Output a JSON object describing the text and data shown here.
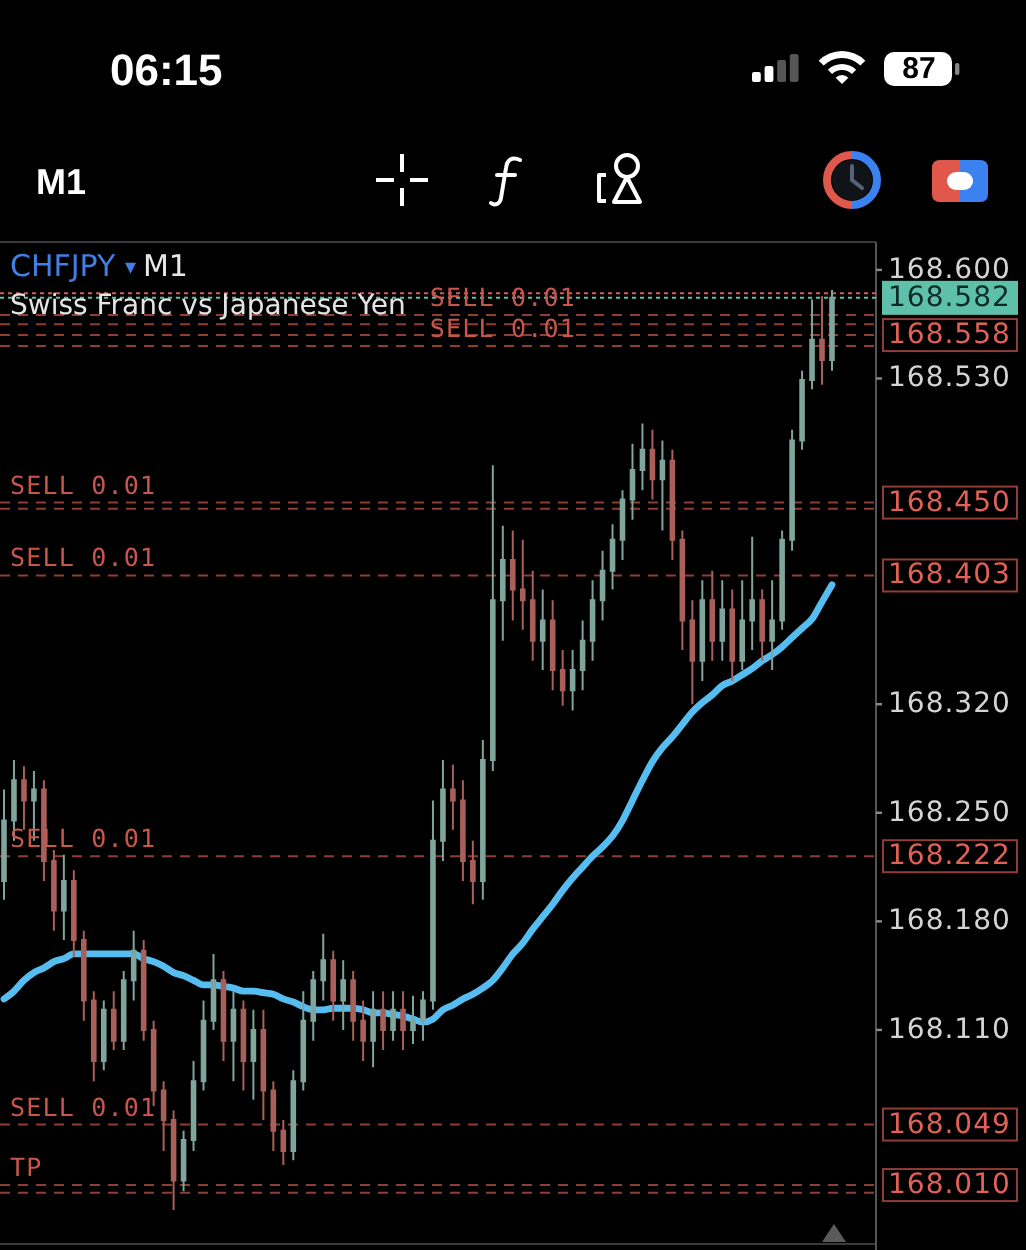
{
  "chart_data": {
    "type": "candlestick",
    "title": "CHFJPY ▾ M1",
    "subtitle": "Swiss Franc vs Japanese Yen",
    "categories": [
      null,
      null,
      null,
      null,
      null,
      null,
      null,
      null,
      null,
      null,
      null,
      null,
      null,
      null,
      null,
      null,
      null,
      null,
      null,
      null,
      null,
      null,
      null,
      null,
      null,
      null,
      null,
      null,
      null,
      null,
      null,
      null,
      null,
      null,
      null,
      null,
      null,
      null,
      null,
      null,
      null,
      null,
      null,
      null,
      null,
      null,
      null,
      null,
      null,
      null,
      null,
      null,
      null,
      null,
      null,
      null,
      null,
      null,
      null,
      null,
      null,
      null,
      null,
      null,
      null,
      null,
      null,
      null,
      null,
      null,
      null,
      null,
      null,
      null,
      null,
      null,
      null,
      null,
      null,
      null,
      null,
      null,
      null,
      null
    ],
    "ohlc": [
      [
        168.206,
        168.265,
        168.194,
        168.245
      ],
      [
        168.245,
        168.284,
        168.232,
        168.271
      ],
      [
        168.271,
        168.28,
        168.239,
        168.258
      ],
      [
        168.258,
        168.277,
        168.232,
        168.265
      ],
      [
        168.265,
        168.271,
        168.206,
        168.219
      ],
      [
        168.219,
        168.226,
        168.174,
        168.187
      ],
      [
        168.187,
        168.223,
        168.168,
        168.206
      ],
      [
        168.206,
        168.213,
        168.157,
        168.168
      ],
      [
        168.168,
        168.174,
        168.116,
        168.129
      ],
      [
        168.129,
        168.135,
        168.077,
        168.09
      ],
      [
        168.09,
        168.129,
        168.084,
        168.123
      ],
      [
        168.123,
        168.135,
        168.097,
        168.103
      ],
      [
        168.103,
        168.148,
        168.097,
        168.142
      ],
      [
        168.142,
        168.174,
        168.129,
        168.161
      ],
      [
        168.161,
        168.168,
        168.103,
        168.11
      ],
      [
        168.11,
        168.116,
        168.061,
        168.071
      ],
      [
        168.071,
        168.077,
        168.032,
        168.052
      ],
      [
        168.052,
        168.058,
        167.994,
        168.013
      ],
      [
        168.013,
        168.045,
        168.006,
        168.039
      ],
      [
        168.039,
        168.09,
        168.032,
        168.077
      ],
      [
        168.077,
        168.129,
        168.071,
        168.116
      ],
      [
        168.116,
        168.159,
        168.11,
        168.142
      ],
      [
        168.142,
        168.148,
        168.09,
        168.103
      ],
      [
        168.103,
        168.135,
        168.077,
        168.123
      ],
      [
        168.123,
        168.129,
        168.071,
        168.09
      ],
      [
        168.09,
        168.123,
        168.065,
        168.11
      ],
      [
        168.11,
        168.123,
        168.052,
        168.071
      ],
      [
        168.071,
        168.077,
        168.032,
        168.045
      ],
      [
        168.045,
        168.052,
        168.023,
        168.032
      ],
      [
        168.032,
        168.084,
        168.026,
        168.077
      ],
      [
        168.077,
        168.135,
        168.071,
        168.116
      ],
      [
        168.116,
        168.148,
        168.103,
        168.142
      ],
      [
        168.142,
        168.172,
        168.129,
        168.155
      ],
      [
        168.155,
        168.161,
        168.116,
        168.129
      ],
      [
        168.129,
        168.155,
        168.11,
        168.142
      ],
      [
        168.142,
        168.148,
        168.103,
        168.116
      ],
      [
        168.116,
        168.129,
        168.09,
        168.103
      ],
      [
        168.103,
        168.135,
        168.086,
        168.123
      ],
      [
        168.123,
        168.135,
        168.097,
        168.11
      ],
      [
        168.11,
        168.135,
        168.103,
        168.123
      ],
      [
        168.123,
        168.135,
        168.097,
        168.11
      ],
      [
        168.11,
        168.132,
        168.101,
        168.116
      ],
      [
        168.116,
        168.135,
        168.103,
        168.129
      ],
      [
        168.129,
        168.258,
        168.123,
        168.232
      ],
      [
        168.232,
        168.284,
        168.219,
        168.265
      ],
      [
        168.265,
        168.281,
        168.239,
        168.258
      ],
      [
        168.258,
        168.271,
        168.206,
        168.219
      ],
      [
        168.219,
        168.232,
        168.191,
        168.206
      ],
      [
        168.206,
        168.297,
        168.194,
        168.284
      ],
      [
        168.284,
        168.474,
        168.277,
        168.387
      ],
      [
        168.387,
        168.435,
        168.361,
        168.413
      ],
      [
        168.413,
        168.432,
        168.374,
        168.394
      ],
      [
        168.394,
        168.426,
        168.368,
        168.387
      ],
      [
        168.387,
        168.406,
        168.348,
        168.361
      ],
      [
        168.361,
        168.394,
        168.342,
        168.374
      ],
      [
        168.374,
        168.387,
        168.329,
        168.342
      ],
      [
        168.342,
        168.355,
        168.319,
        168.329
      ],
      [
        168.329,
        168.355,
        168.316,
        168.342
      ],
      [
        168.342,
        168.374,
        168.329,
        168.361
      ],
      [
        168.361,
        168.4,
        168.348,
        168.387
      ],
      [
        168.387,
        168.419,
        168.374,
        168.406
      ],
      [
        168.406,
        168.436,
        168.394,
        168.426
      ],
      [
        168.426,
        168.458,
        168.413,
        168.452
      ],
      [
        168.452,
        168.488,
        168.439,
        168.471
      ],
      [
        168.471,
        168.501,
        168.458,
        168.484
      ],
      [
        168.484,
        168.497,
        168.452,
        168.465
      ],
      [
        168.465,
        168.49,
        168.432,
        168.477
      ],
      [
        168.477,
        168.484,
        168.413,
        168.426
      ],
      [
        168.426,
        168.432,
        168.355,
        168.374
      ],
      [
        168.374,
        168.387,
        168.32,
        168.348
      ],
      [
        168.348,
        168.4,
        168.335,
        168.387
      ],
      [
        168.387,
        168.406,
        168.348,
        168.361
      ],
      [
        168.361,
        168.4,
        168.348,
        168.381
      ],
      [
        168.381,
        168.394,
        168.335,
        168.348
      ],
      [
        168.348,
        168.4,
        168.342,
        168.374
      ],
      [
        168.374,
        168.428,
        168.355,
        168.387
      ],
      [
        168.387,
        168.394,
        168.348,
        168.361
      ],
      [
        168.361,
        168.4,
        168.342,
        168.374
      ],
      [
        168.374,
        168.432,
        168.368,
        168.426
      ],
      [
        168.426,
        168.497,
        168.419,
        168.49
      ],
      [
        168.49,
        168.535,
        168.484,
        168.529
      ],
      [
        168.529,
        168.581,
        168.523,
        168.555
      ],
      [
        168.555,
        168.583,
        168.526,
        168.542
      ],
      [
        168.542,
        168.587,
        168.535,
        168.582
      ]
    ],
    "colors": [
      "#7fa59c",
      "#7fa59c",
      "#a9605a",
      "#7fa59c",
      "#a9605a",
      "#a9605a",
      "#7fa59c",
      "#a9605a",
      "#a9605a",
      "#a9605a",
      "#7fa59c",
      "#a9605a",
      "#7fa59c",
      "#7fa59c",
      "#a9605a",
      "#a9605a",
      "#a9605a",
      "#a9605a",
      "#7fa59c",
      "#7fa59c",
      "#7fa59c",
      "#7fa59c",
      "#a9605a",
      "#7fa59c",
      "#a9605a",
      "#7fa59c",
      "#a9605a",
      "#a9605a",
      "#a9605a",
      "#7fa59c",
      "#7fa59c",
      "#7fa59c",
      "#7fa59c",
      "#a9605a",
      "#7fa59c",
      "#a9605a",
      "#a9605a",
      "#7fa59c",
      "#a9605a",
      "#7fa59c",
      "#a9605a",
      "#7fa59c",
      "#7fa59c",
      "#7fa59c",
      "#7fa59c",
      "#a9605a",
      "#a9605a",
      "#a9605a",
      "#7fa59c",
      "#7fa59c",
      "#7fa59c",
      "#a9605a",
      "#a9605a",
      "#a9605a",
      "#7fa59c",
      "#a9605a",
      "#a9605a",
      "#7fa59c",
      "#7fa59c",
      "#7fa59c",
      "#7fa59c",
      "#7fa59c",
      "#7fa59c",
      "#7fa59c",
      "#7fa59c",
      "#a9605a",
      "#7fa59c",
      "#a9605a",
      "#a9605a",
      "#a9605a",
      "#7fa59c",
      "#a9605a",
      "#7fa59c",
      "#a9605a",
      "#7fa59c",
      "#7fa59c",
      "#a9605a",
      "#7fa59c",
      "#7fa59c",
      "#7fa59c",
      "#7fa59c",
      "#7fa59c",
      "#a9605a",
      "#7fa59c"
    ],
    "series": [
      {
        "type": "line",
        "color": "#56bdf0",
        "values": [
          168.13,
          168.135,
          168.142,
          168.147,
          168.15,
          168.154,
          168.156,
          168.159,
          168.159,
          168.159,
          168.159,
          168.159,
          168.159,
          168.159,
          168.156,
          168.154,
          168.151,
          168.147,
          168.145,
          168.142,
          168.139,
          168.139,
          168.138,
          168.137,
          168.135,
          168.135,
          168.134,
          168.133,
          168.13,
          168.128,
          168.125,
          168.123,
          168.123,
          168.124,
          168.124,
          168.124,
          168.123,
          168.121,
          168.121,
          168.12,
          168.119,
          168.117,
          168.115,
          168.117,
          168.123,
          168.126,
          168.13,
          168.133,
          168.137,
          168.142,
          168.15,
          168.159,
          168.166,
          168.175,
          168.183,
          168.191,
          168.2,
          168.208,
          168.215,
          168.222,
          168.228,
          168.235,
          168.245,
          168.258,
          168.271,
          168.283,
          168.292,
          168.299,
          168.307,
          168.315,
          168.321,
          168.326,
          168.332,
          168.335,
          168.339,
          168.343,
          168.348,
          168.352,
          168.357,
          168.363,
          168.369,
          168.375,
          168.386,
          168.397
        ]
      }
    ],
    "ylim": [
      167.972,
      168.618
    ],
    "yticks": [
      {
        "value": 168.11,
        "label": "168.110"
      },
      {
        "value": 168.18,
        "label": "168.180"
      },
      {
        "value": 168.25,
        "label": "168.250"
      },
      {
        "value": 168.32,
        "label": "168.320"
      },
      {
        "value": 168.53,
        "label": "168.530"
      },
      {
        "value": 168.6,
        "label": "168.600"
      }
    ],
    "ref_lines": [
      {
        "axis": "y",
        "value": 168.585,
        "color": "#e0574c",
        "line_style": "dotted"
      },
      {
        "axis": "y",
        "value": 168.582,
        "label": "168.582",
        "color": "#5fc0aa",
        "line_style": "dotted"
      },
      {
        "axis": "y",
        "value": 168.571,
        "color": "#8e3d37",
        "line_style": "dashed"
      },
      {
        "axis": "y",
        "value": 168.565,
        "color": "#8e3d37",
        "line_style": "dashed"
      },
      {
        "axis": "y",
        "value": 168.558,
        "label": "168.558",
        "color": "#8e3d37",
        "line_style": "dashed"
      },
      {
        "axis": "y",
        "value": 168.551,
        "color": "#8e3d37",
        "line_style": "dashed"
      },
      {
        "axis": "y",
        "value": 168.45,
        "label": "168.450",
        "color": "#8e3d37",
        "line_style": "dashed"
      },
      {
        "axis": "y",
        "value": 168.446,
        "color": "#8e3d37",
        "line_style": "dashed"
      },
      {
        "axis": "y",
        "value": 168.403,
        "label": "168.403",
        "color": "#8e3d37",
        "line_style": "dashed"
      },
      {
        "axis": "y",
        "value": 168.222,
        "label": "168.222",
        "color": "#8e3d37",
        "line_style": "dashed"
      },
      {
        "axis": "y",
        "value": 168.049,
        "label": "168.049",
        "color": "#8e3d37",
        "line_style": "dashed"
      },
      {
        "axis": "y",
        "value": 168.01,
        "label": "168.010",
        "color": "#8e3d37",
        "line_style": "dashed"
      },
      {
        "axis": "y",
        "value": 168.005,
        "color": "#8e3d37",
        "line_style": "dashed"
      }
    ],
    "annotations": [
      "06:15",
      "87",
      "M1",
      {
        "text": "SELL 0.01",
        "y": 168.571
      },
      {
        "text": "SELL 0.01",
        "y": 168.551
      },
      {
        "text": "SELL 0.01",
        "y": 168.45
      },
      {
        "text": "SELL 0.01",
        "y": 168.403
      },
      {
        "text": "SELL 0.01",
        "y": 168.222
      },
      {
        "text": "SELL 0.01",
        "y": 168.049
      },
      {
        "text": "TP",
        "y": 168.01
      }
    ]
  }
}
